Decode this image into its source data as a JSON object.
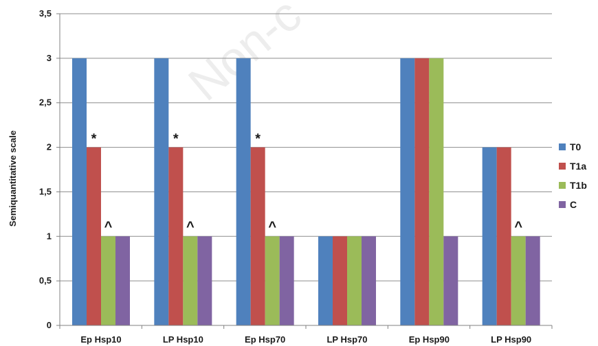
{
  "chart_data": {
    "type": "bar",
    "categories": [
      "Ep Hsp10",
      "LP Hsp10",
      "Ep Hsp70",
      "LP Hsp70",
      "Ep Hsp90",
      "LP Hsp90"
    ],
    "series": [
      {
        "name": "T0",
        "color": "#4F81BD",
        "values": [
          3,
          3,
          3,
          1,
          3,
          2
        ]
      },
      {
        "name": "T1a",
        "color": "#C0504D",
        "values": [
          2,
          2,
          2,
          1,
          3,
          2
        ]
      },
      {
        "name": "T1b",
        "color": "#9BBB59",
        "values": [
          1,
          1,
          1,
          1,
          3,
          1
        ]
      },
      {
        "name": "C",
        "color": "#8064A2",
        "values": [
          1,
          1,
          1,
          1,
          1,
          1
        ]
      }
    ],
    "ylabel": "Semiquantitative scale",
    "xlabel": "",
    "ylim": [
      0,
      3.5
    ],
    "yticks": [
      "0",
      "0,5",
      "1",
      "1,5",
      "2",
      "2,5",
      "3",
      "3,5"
    ],
    "ytick_values": [
      0,
      0.5,
      1,
      1.5,
      2,
      2.5,
      3,
      3.5
    ],
    "grid": true,
    "legend_position": "right",
    "annotations": [
      {
        "text": "*",
        "category": "Ep Hsp10",
        "series": "T1a"
      },
      {
        "text": "^",
        "category": "Ep Hsp10",
        "series": "T1b"
      },
      {
        "text": "*",
        "category": "LP Hsp10",
        "series": "T1a"
      },
      {
        "text": "^",
        "category": "LP Hsp10",
        "series": "T1b"
      },
      {
        "text": "*",
        "category": "Ep Hsp70",
        "series": "T1a"
      },
      {
        "text": "^",
        "category": "Ep Hsp70",
        "series": "T1b"
      },
      {
        "text": "^",
        "category": "LP Hsp90",
        "series": "T1b"
      }
    ]
  },
  "watermark": "Non-c"
}
